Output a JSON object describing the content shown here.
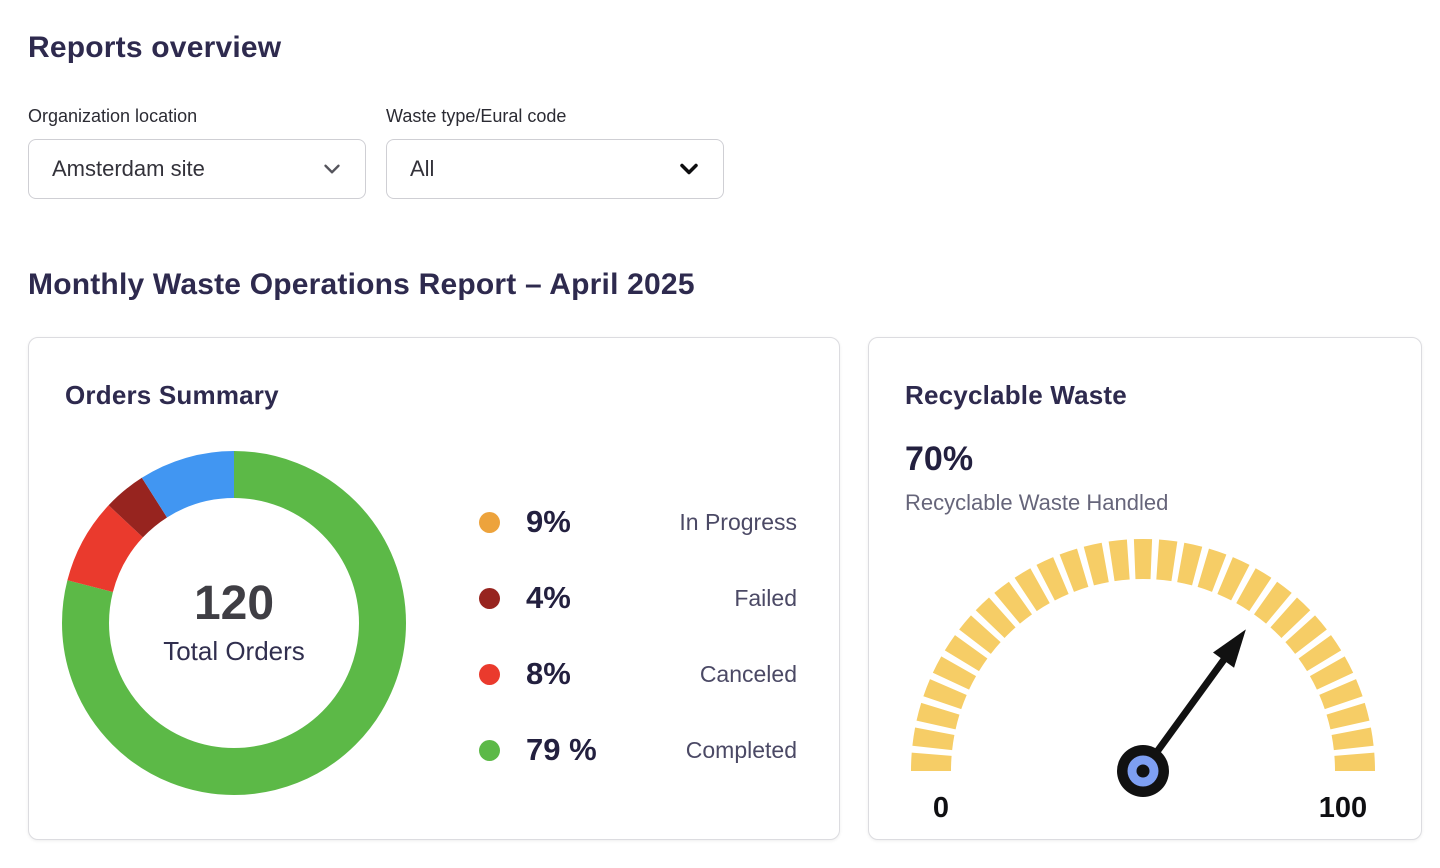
{
  "header": {
    "title": "Reports overview"
  },
  "filters": {
    "location": {
      "label": "Organization location",
      "value": "Amsterdam site"
    },
    "waste_type": {
      "label": "Waste type/Eural code",
      "value": "All"
    }
  },
  "section": {
    "title": "Monthly Waste Operations Report – April 2025"
  },
  "colors": {
    "brand_navy": "#2E2A4E",
    "card_border": "#DCDCE0"
  },
  "chart_data": [
    {
      "type": "pie",
      "variant": "donut",
      "title": "Orders Summary",
      "center_value": "120",
      "center_label": "Total Orders",
      "total_orders": 120,
      "legend_position": "right",
      "segments": [
        {
          "label": "In Progress",
          "value": 9,
          "display": "9%",
          "segment_color": "#4196F2",
          "dot_color": "#EDA33C"
        },
        {
          "label": "Failed",
          "value": 4,
          "display": "4%",
          "segment_color": "#97241F",
          "dot_color": "#97241F"
        },
        {
          "label": "Canceled",
          "value": 8,
          "display": "8%",
          "segment_color": "#EA3A2D",
          "dot_color": "#EA3A2D"
        },
        {
          "label": "Completed",
          "value": 79,
          "display": "79 %",
          "segment_color": "#5CB947",
          "dot_color": "#5CB947"
        }
      ]
    },
    {
      "type": "gauge",
      "title": "Recyclable Waste",
      "display_value": "70%",
      "subtitle": "Recyclable Waste Handled",
      "value": 70,
      "min": 0,
      "max": 100,
      "min_label": "0",
      "max_label": "100",
      "tick_color": "#F6CD66",
      "needle_color": "#111111",
      "hub_outer_color": "#111111",
      "hub_inner_color": "#7E9FF2",
      "hub_dot_color": "#111111"
    }
  ]
}
